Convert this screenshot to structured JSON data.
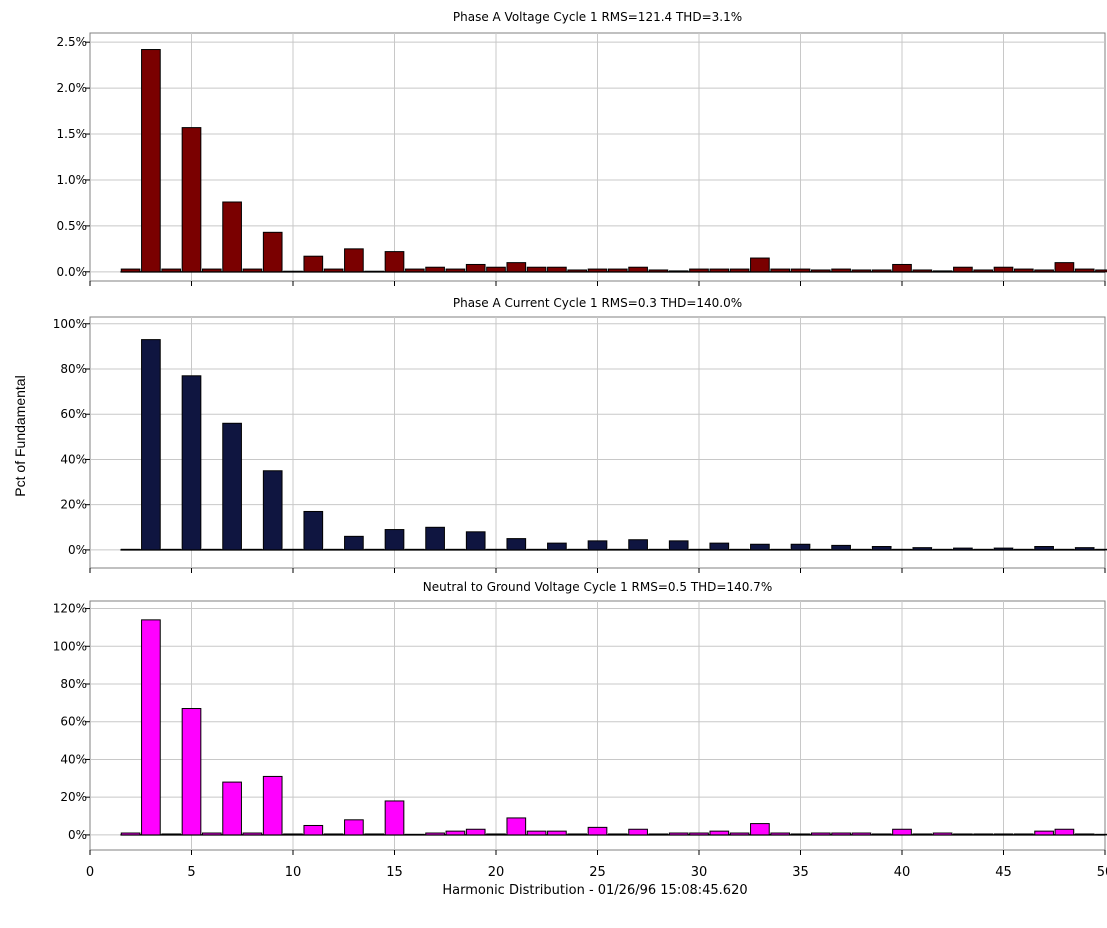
{
  "ylabel": "Pct of Fundamental",
  "footer": "Harmonic Distribution - 01/26/96 15:08:45.620",
  "chart_data": [
    {
      "type": "bar",
      "title": "Phase A Voltage Cycle 1 RMS=121.4 THD=3.1%",
      "color": "#7a0000",
      "ylim": [
        -0.1,
        2.6
      ],
      "yticks": [
        0.0,
        0.5,
        1.0,
        1.5,
        2.0,
        2.5
      ],
      "ytick_labels": [
        "0.0%",
        "0.5%",
        "1.0%",
        "1.5%",
        "2.0%",
        "2.5%"
      ],
      "x": [
        2,
        3,
        4,
        5,
        6,
        7,
        8,
        9,
        10,
        11,
        12,
        13,
        14,
        15,
        16,
        17,
        18,
        19,
        20,
        21,
        22,
        23,
        24,
        25,
        26,
        27,
        28,
        29,
        30,
        31,
        32,
        33,
        34,
        35,
        36,
        37,
        38,
        39,
        40,
        41,
        42,
        43,
        44,
        45,
        46,
        47,
        48,
        49,
        50
      ],
      "values": [
        0.03,
        2.42,
        0.03,
        1.57,
        0.03,
        0.76,
        0.03,
        0.43,
        0.0,
        0.17,
        0.03,
        0.25,
        0.0,
        0.22,
        0.03,
        0.05,
        0.03,
        0.08,
        0.05,
        0.1,
        0.05,
        0.05,
        0.02,
        0.03,
        0.03,
        0.05,
        0.02,
        0.01,
        0.03,
        0.03,
        0.03,
        0.15,
        0.03,
        0.03,
        0.02,
        0.03,
        0.02,
        0.02,
        0.08,
        0.02,
        0.01,
        0.05,
        0.02,
        0.05,
        0.03,
        0.02,
        0.1,
        0.03,
        0.02
      ]
    },
    {
      "type": "bar",
      "title": "Phase A Current Cycle 1 RMS=0.3 THD=140.0%",
      "color": "#0f1540",
      "ylim": [
        -8,
        103
      ],
      "yticks": [
        0,
        20,
        40,
        60,
        80,
        100
      ],
      "ytick_labels": [
        "0%",
        "20%",
        "40%",
        "60%",
        "80%",
        "100%"
      ],
      "x": [
        2,
        3,
        4,
        5,
        6,
        7,
        8,
        9,
        10,
        11,
        12,
        13,
        14,
        15,
        16,
        17,
        18,
        19,
        20,
        21,
        22,
        23,
        24,
        25,
        26,
        27,
        28,
        29,
        30,
        31,
        32,
        33,
        34,
        35,
        36,
        37,
        38,
        39,
        40,
        41,
        42,
        43,
        44,
        45,
        46,
        47,
        48,
        49,
        50
      ],
      "values": [
        0,
        93,
        0,
        77,
        0,
        56,
        0,
        35,
        0,
        17,
        0,
        6,
        0,
        9,
        0,
        10,
        0,
        8,
        0,
        5,
        0,
        3,
        0,
        4,
        0,
        4.5,
        0,
        4,
        0,
        3,
        0,
        2.5,
        0,
        2.5,
        0,
        2,
        0,
        1.5,
        0,
        1,
        0,
        0.8,
        0,
        0.8,
        0,
        1.5,
        0,
        1,
        0
      ]
    },
    {
      "type": "bar",
      "title": "Neutral to Ground Voltage Cycle 1 RMS=0.5 THD=140.7%",
      "color": "#ff00ff",
      "ylim": [
        -8,
        124
      ],
      "yticks": [
        0,
        20,
        40,
        60,
        80,
        100,
        120
      ],
      "ytick_labels": [
        "0%",
        "20%",
        "40%",
        "60%",
        "80%",
        "100%",
        "120%"
      ],
      "xlim": [
        0,
        50
      ],
      "xticks": [
        0,
        5,
        10,
        15,
        20,
        25,
        30,
        35,
        40,
        45,
        50
      ],
      "x": [
        2,
        3,
        4,
        5,
        6,
        7,
        8,
        9,
        10,
        11,
        12,
        13,
        14,
        15,
        16,
        17,
        18,
        19,
        20,
        21,
        22,
        23,
        24,
        25,
        26,
        27,
        28,
        29,
        30,
        31,
        32,
        33,
        34,
        35,
        36,
        37,
        38,
        39,
        40,
        41,
        42,
        43,
        44,
        45,
        46,
        47,
        48,
        49,
        50
      ],
      "values": [
        1,
        114,
        0.5,
        67,
        1,
        28,
        1,
        31,
        0.5,
        5,
        0.5,
        8,
        0.5,
        18,
        0,
        1,
        2,
        3,
        0.5,
        9,
        2,
        2,
        0.5,
        4,
        0.5,
        3,
        0.5,
        1,
        1,
        2,
        1,
        6,
        1,
        0.5,
        1,
        1,
        1,
        0.5,
        3,
        0.5,
        1,
        0.5,
        0.5,
        0.5,
        0.5,
        2,
        3,
        0.5,
        0
      ]
    }
  ]
}
